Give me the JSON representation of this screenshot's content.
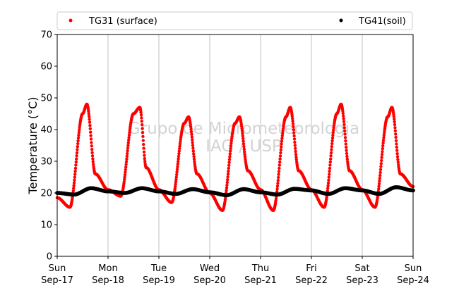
{
  "chart_data": {
    "type": "scatter",
    "title": "",
    "xlabel": "",
    "ylabel": "Temperature (°C)",
    "ylim": [
      0,
      70
    ],
    "yticks": [
      0,
      10,
      20,
      30,
      40,
      50,
      60,
      70
    ],
    "xlim": [
      "2018-09-17 00:00",
      "2018-09-24 00:00"
    ],
    "xticks": [
      {
        "day": "Sun",
        "date": "Sep-17"
      },
      {
        "day": "Mon",
        "date": "Sep-18"
      },
      {
        "day": "Tue",
        "date": "Sep-19"
      },
      {
        "day": "Wed",
        "date": "Sep-20"
      },
      {
        "day": "Thu",
        "date": "Sep-21"
      },
      {
        "day": "Fri",
        "date": "Sep-22"
      },
      {
        "day": "Sat",
        "date": "Sep-23"
      },
      {
        "day": "Sun",
        "date": "Sep-24"
      }
    ],
    "grid": "vertical",
    "legend": "top",
    "watermark": [
      "Grupo de Micrometeorologia",
      "IAG / USP"
    ],
    "series": [
      {
        "name": "TG31 (surface)",
        "color": "#ff0000",
        "x": [
          "2018-09-17 00:00",
          "2018-09-17 06:00",
          "2018-09-17 12:00",
          "2018-09-17 14:00",
          "2018-09-17 18:00",
          "2018-09-18 00:00",
          "2018-09-18 06:00",
          "2018-09-18 12:00",
          "2018-09-18 15:00",
          "2018-09-18 18:00",
          "2018-09-19 00:00",
          "2018-09-19 06:00",
          "2018-09-19 12:00",
          "2018-09-19 14:00",
          "2018-09-19 18:00",
          "2018-09-20 00:00",
          "2018-09-20 06:00",
          "2018-09-20 12:00",
          "2018-09-20 14:00",
          "2018-09-20 18:00",
          "2018-09-21 00:00",
          "2018-09-21 06:00",
          "2018-09-21 12:00",
          "2018-09-21 14:00",
          "2018-09-21 18:00",
          "2018-09-22 00:00",
          "2018-09-22 06:00",
          "2018-09-22 12:00",
          "2018-09-22 14:00",
          "2018-09-22 18:00",
          "2018-09-23 00:00",
          "2018-09-23 06:00",
          "2018-09-23 12:00",
          "2018-09-23 14:00",
          "2018-09-23 18:00",
          "2018-09-24 00:00"
        ],
        "y": [
          18.5,
          15.5,
          45,
          48,
          26,
          21,
          19,
          45,
          47,
          28,
          21,
          17,
          42,
          44,
          26,
          20,
          14.5,
          42,
          44,
          27,
          21,
          14.5,
          44,
          47,
          27,
          21,
          15.5,
          45,
          48,
          27,
          21,
          15.5,
          44,
          47,
          26,
          22
        ]
      },
      {
        "name": "TG41(soil)",
        "color": "#000000",
        "x": [
          "2018-09-17 00:00",
          "2018-09-17 08:00",
          "2018-09-17 16:00",
          "2018-09-18 00:00",
          "2018-09-18 08:00",
          "2018-09-18 16:00",
          "2018-09-19 00:00",
          "2018-09-19 08:00",
          "2018-09-19 16:00",
          "2018-09-20 00:00",
          "2018-09-20 08:00",
          "2018-09-20 16:00",
          "2018-09-21 00:00",
          "2018-09-21 08:00",
          "2018-09-21 16:00",
          "2018-09-22 00:00",
          "2018-09-22 08:00",
          "2018-09-22 16:00",
          "2018-09-23 00:00",
          "2018-09-23 08:00",
          "2018-09-23 16:00",
          "2018-09-24 00:00"
        ],
        "y": [
          20,
          19.5,
          21.5,
          20.5,
          20,
          21.5,
          20.5,
          19.7,
          21.2,
          20.2,
          19.3,
          21.2,
          20.2,
          19.5,
          21.3,
          20.8,
          19.7,
          21.5,
          20.8,
          19.7,
          21.8,
          20.8
        ]
      }
    ]
  }
}
